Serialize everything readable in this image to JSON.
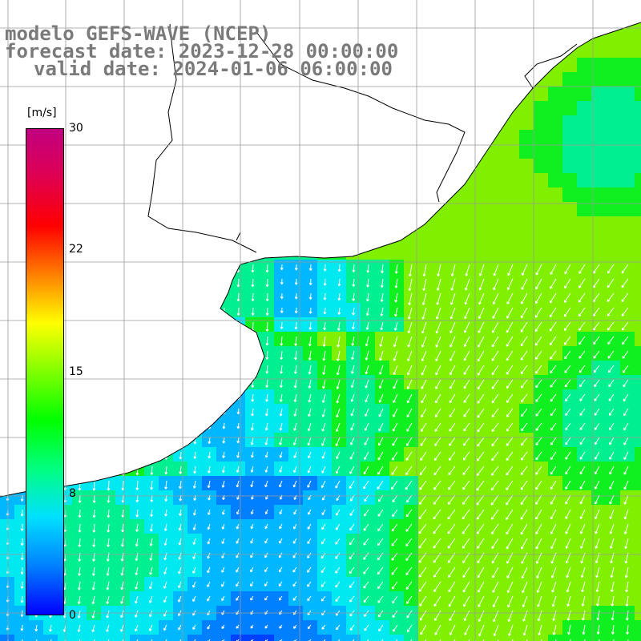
{
  "title": {
    "line1": "modelo GEFS-WAVE (NCEP)",
    "line2": "forecast date: 2023-12-28 00:00:00",
    "line3": "valid date: 2024-01-06 06:00:00"
  },
  "colorbar": {
    "unit": "[m/s]",
    "ticks": [
      "30",
      "22",
      "15",
      "8",
      "0"
    ],
    "colors": [
      "#0000ff",
      "#0080ff",
      "#00e0ff",
      "#00ff80",
      "#00ff00",
      "#80ff00",
      "#ffff00",
      "#ff8000",
      "#ff0000",
      "#e00050",
      "#c00080"
    ]
  },
  "colors": {
    "land": "#ffffff",
    "coast": "#000000",
    "grid": "#9a9a9a",
    "arrow": "#ffffff"
  }
}
